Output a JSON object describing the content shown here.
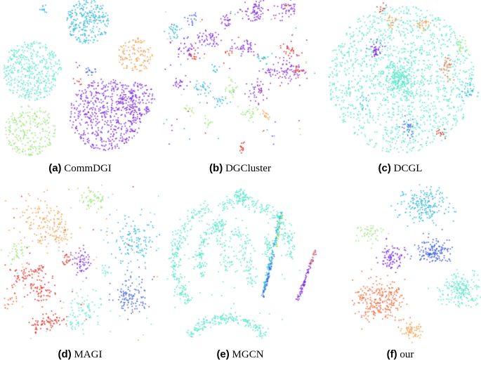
{
  "colors": {
    "cyan": "#2fb6d8",
    "aqua": "#59e6c8",
    "lightgreen": "#9ee57e",
    "purple": "#7a2be0",
    "blue": "#3a5ee0",
    "orange": "#f0a050",
    "darkorange": "#f06a3a",
    "red": "#e52a1e"
  },
  "panels": [
    {
      "id": "a",
      "tag": "(a)",
      "name": "CommDGI"
    },
    {
      "id": "b",
      "tag": "(b)",
      "name": "DGCluster"
    },
    {
      "id": "c",
      "tag": "(c)",
      "name": "DCGL"
    },
    {
      "id": "d",
      "tag": "(d)",
      "name": "MAGI"
    },
    {
      "id": "e",
      "tag": "(e)",
      "name": "MGCN"
    },
    {
      "id": "f",
      "tag": "(f)",
      "name": "our"
    }
  ]
}
